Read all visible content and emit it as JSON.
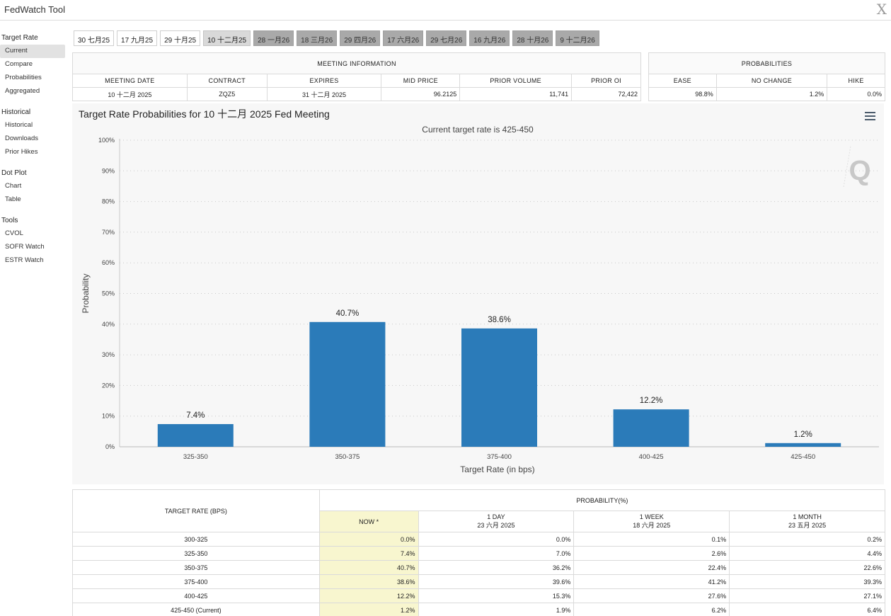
{
  "app": {
    "title": "FedWatch Tool",
    "close_glyph": "X"
  },
  "sidebar": {
    "sections": [
      {
        "heading": "Target Rate",
        "items": [
          {
            "label": "Current",
            "active": true
          },
          {
            "label": "Compare"
          },
          {
            "label": "Probabilities"
          },
          {
            "label": "Aggregated"
          }
        ]
      },
      {
        "heading": "Historical",
        "items": [
          {
            "label": "Historical"
          },
          {
            "label": "Downloads"
          },
          {
            "label": "Prior Hikes"
          }
        ]
      },
      {
        "heading": "Dot Plot",
        "items": [
          {
            "label": "Chart"
          },
          {
            "label": "Table"
          }
        ]
      },
      {
        "heading": "Tools",
        "items": [
          {
            "label": "CVOL"
          },
          {
            "label": "SOFR Watch"
          },
          {
            "label": "ESTR Watch"
          }
        ]
      }
    ]
  },
  "meeting_tabs": [
    {
      "label": "30 七月25",
      "state": "past"
    },
    {
      "label": "17 九月25",
      "state": "past"
    },
    {
      "label": "29 十月25",
      "state": "past"
    },
    {
      "label": "10 十二月25",
      "state": "selected"
    },
    {
      "label": "28 一月26",
      "state": "future"
    },
    {
      "label": "18 三月26",
      "state": "future"
    },
    {
      "label": "29 四月26",
      "state": "future"
    },
    {
      "label": "17 六月26",
      "state": "future"
    },
    {
      "label": "29 七月26",
      "state": "future"
    },
    {
      "label": "16 九月26",
      "state": "future"
    },
    {
      "label": "28 十月26",
      "state": "future"
    },
    {
      "label": "9 十二月26",
      "state": "future"
    }
  ],
  "meeting_info": {
    "title": "MEETING INFORMATION",
    "headers": [
      "MEETING DATE",
      "CONTRACT",
      "EXPIRES",
      "MID PRICE",
      "PRIOR VOLUME",
      "PRIOR OI"
    ],
    "values": [
      "10 十二月 2025",
      "ZQZ5",
      "31 十二月 2025",
      "96.2125",
      "11,741",
      "72,422"
    ]
  },
  "probabilities": {
    "title": "PROBABILITIES",
    "headers": [
      "EASE",
      "NO CHANGE",
      "HIKE"
    ],
    "values": [
      "98.8%",
      "1.2%",
      "0.0%"
    ]
  },
  "chart": {
    "menu_icon": "hamburger-menu-icon",
    "watermark_icon": "q-logo-icon",
    "watermark_text": "Q"
  },
  "chart_data": {
    "type": "bar",
    "title": "Target Rate Probabilities for 10 十二月 2025 Fed Meeting",
    "subtitle": "Current target rate is 425-450",
    "xlabel": "Target Rate (in bps)",
    "ylabel": "Probability",
    "categories": [
      "325-350",
      "350-375",
      "375-400",
      "400-425",
      "425-450"
    ],
    "values": [
      7.4,
      40.7,
      38.6,
      12.2,
      1.2
    ],
    "data_labels": [
      "7.4%",
      "40.7%",
      "38.6%",
      "12.2%",
      "1.2%"
    ],
    "ylim": [
      0,
      100
    ],
    "yticks": [
      0,
      10,
      20,
      30,
      40,
      50,
      60,
      70,
      80,
      90,
      100
    ],
    "ytick_labels": [
      "0%",
      "10%",
      "20%",
      "30%",
      "40%",
      "50%",
      "60%",
      "70%",
      "80%",
      "90%",
      "100%"
    ],
    "bar_color": "#2b7bb9",
    "grid": true,
    "legend": "none"
  },
  "prob_table": {
    "rate_header": "TARGET RATE (BPS)",
    "prob_header": "PROBABILITY(%)",
    "columns": [
      {
        "label": "NOW *",
        "sub": ""
      },
      {
        "label": "1 DAY",
        "sub": "23 六月 2025"
      },
      {
        "label": "1 WEEK",
        "sub": "18 六月 2025"
      },
      {
        "label": "1 MONTH",
        "sub": "23 五月 2025"
      }
    ],
    "rows": [
      {
        "rate": "300-325",
        "values": [
          "0.0%",
          "0.0%",
          "0.1%",
          "0.2%"
        ]
      },
      {
        "rate": "325-350",
        "values": [
          "7.4%",
          "7.0%",
          "2.6%",
          "4.4%"
        ]
      },
      {
        "rate": "350-375",
        "values": [
          "40.7%",
          "36.2%",
          "22.4%",
          "22.6%"
        ]
      },
      {
        "rate": "375-400",
        "values": [
          "38.6%",
          "39.6%",
          "41.2%",
          "39.3%"
        ]
      },
      {
        "rate": "400-425",
        "values": [
          "12.2%",
          "15.3%",
          "27.6%",
          "27.1%"
        ]
      },
      {
        "rate": "425-450 (Current)",
        "values": [
          "1.2%",
          "1.9%",
          "6.2%",
          "6.4%"
        ]
      }
    ]
  }
}
